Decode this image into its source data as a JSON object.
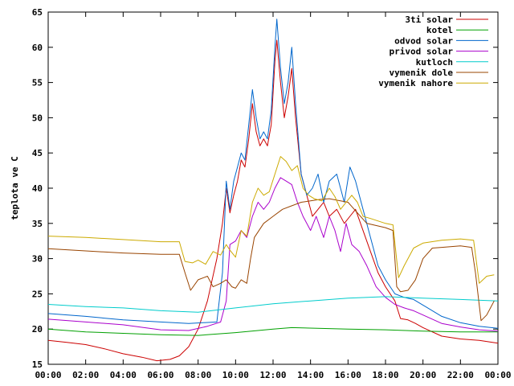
{
  "chart_data": {
    "type": "line",
    "title": "",
    "xlabel": "",
    "ylabel": "teplota ve C",
    "xlim": [
      0,
      24
    ],
    "ylim": [
      15,
      65
    ],
    "x_ticks": [
      {
        "v": 0,
        "label": "00:00"
      },
      {
        "v": 2,
        "label": "02:00"
      },
      {
        "v": 4,
        "label": "04:00"
      },
      {
        "v": 6,
        "label": "06:00"
      },
      {
        "v": 8,
        "label": "08:00"
      },
      {
        "v": 10,
        "label": "10:00"
      },
      {
        "v": 12,
        "label": "12:00"
      },
      {
        "v": 14,
        "label": "14:00"
      },
      {
        "v": 16,
        "label": "16:00"
      },
      {
        "v": 18,
        "label": "18:00"
      },
      {
        "v": 20,
        "label": "20:00"
      },
      {
        "v": 22,
        "label": "22:00"
      },
      {
        "v": 24,
        "label": "00:00"
      }
    ],
    "y_ticks": [
      15,
      20,
      25,
      30,
      35,
      40,
      45,
      50,
      55,
      60,
      65
    ],
    "grid": false,
    "legend_position": "top-right",
    "series": [
      {
        "name": "3ti solar",
        "color": "#cc0000",
        "points": [
          [
            0,
            18.4
          ],
          [
            1,
            18.1
          ],
          [
            2,
            17.8
          ],
          [
            3,
            17.2
          ],
          [
            4,
            16.5
          ],
          [
            5,
            16.0
          ],
          [
            5.8,
            15.5
          ],
          [
            6.5,
            15.7
          ],
          [
            7,
            16.2
          ],
          [
            7.5,
            17.5
          ],
          [
            8,
            20
          ],
          [
            8.5,
            24
          ],
          [
            9,
            30
          ],
          [
            9.3,
            35
          ],
          [
            9.5,
            40
          ],
          [
            9.7,
            36.5
          ],
          [
            9.9,
            39
          ],
          [
            10.1,
            41
          ],
          [
            10.3,
            44
          ],
          [
            10.5,
            43
          ],
          [
            10.7,
            47
          ],
          [
            10.9,
            52
          ],
          [
            11.1,
            48
          ],
          [
            11.3,
            46
          ],
          [
            11.5,
            47
          ],
          [
            11.7,
            46
          ],
          [
            11.9,
            49
          ],
          [
            12.1,
            58
          ],
          [
            12.2,
            61
          ],
          [
            12.4,
            55
          ],
          [
            12.6,
            50
          ],
          [
            12.8,
            53
          ],
          [
            13,
            57
          ],
          [
            13.2,
            50
          ],
          [
            13.5,
            42
          ],
          [
            13.8,
            39
          ],
          [
            14.1,
            36
          ],
          [
            14.4,
            37
          ],
          [
            14.7,
            38
          ],
          [
            15,
            36
          ],
          [
            15.4,
            37
          ],
          [
            15.8,
            35
          ],
          [
            16.1,
            36
          ],
          [
            16.4,
            37
          ],
          [
            16.8,
            34
          ],
          [
            17.2,
            31
          ],
          [
            17.6,
            28
          ],
          [
            18,
            26
          ],
          [
            18.5,
            24
          ],
          [
            18.8,
            21.5
          ],
          [
            19.2,
            21.3
          ],
          [
            19.6,
            20.8
          ],
          [
            20,
            20.2
          ],
          [
            21,
            19.0
          ],
          [
            22,
            18.6
          ],
          [
            23,
            18.4
          ],
          [
            24,
            18.0
          ]
        ]
      },
      {
        "name": "kotel",
        "color": "#00a000",
        "points": [
          [
            0,
            20.0
          ],
          [
            2,
            19.6
          ],
          [
            4,
            19.4
          ],
          [
            6,
            19.2
          ],
          [
            8,
            19.1
          ],
          [
            10,
            19.5
          ],
          [
            12,
            20.0
          ],
          [
            13,
            20.2
          ],
          [
            16,
            20.0
          ],
          [
            18,
            19.9
          ],
          [
            20,
            19.7
          ],
          [
            22,
            19.6
          ],
          [
            24,
            19.6
          ]
        ]
      },
      {
        "name": "odvod solar",
        "color": "#0066cc",
        "points": [
          [
            0,
            22.2
          ],
          [
            2,
            21.8
          ],
          [
            4,
            21.3
          ],
          [
            6,
            21.0
          ],
          [
            7.5,
            20.8
          ],
          [
            9,
            21.0
          ],
          [
            9.3,
            28
          ],
          [
            9.5,
            41
          ],
          [
            9.7,
            37
          ],
          [
            9.9,
            41
          ],
          [
            10.1,
            43
          ],
          [
            10.3,
            45
          ],
          [
            10.5,
            44
          ],
          [
            10.7,
            49
          ],
          [
            10.9,
            54
          ],
          [
            11.1,
            50
          ],
          [
            11.3,
            47
          ],
          [
            11.5,
            48
          ],
          [
            11.7,
            47
          ],
          [
            11.9,
            51
          ],
          [
            12.1,
            60
          ],
          [
            12.2,
            64
          ],
          [
            12.4,
            57
          ],
          [
            12.6,
            52
          ],
          [
            12.8,
            55
          ],
          [
            13,
            60
          ],
          [
            13.2,
            52
          ],
          [
            13.5,
            42
          ],
          [
            13.8,
            39
          ],
          [
            14.1,
            40
          ],
          [
            14.4,
            42
          ],
          [
            14.7,
            38
          ],
          [
            15,
            41
          ],
          [
            15.4,
            42
          ],
          [
            15.8,
            38
          ],
          [
            16.1,
            43
          ],
          [
            16.4,
            41
          ],
          [
            16.8,
            37
          ],
          [
            17.2,
            33
          ],
          [
            17.6,
            29
          ],
          [
            18,
            27
          ],
          [
            18.5,
            25
          ],
          [
            19,
            24.5
          ],
          [
            19.5,
            24.2
          ],
          [
            20,
            23.4
          ],
          [
            21,
            21.8
          ],
          [
            22,
            20.9
          ],
          [
            23,
            20.4
          ],
          [
            24,
            20.1
          ]
        ]
      },
      {
        "name": "privod solar",
        "color": "#aa00cc",
        "points": [
          [
            0,
            21.4
          ],
          [
            2,
            21.0
          ],
          [
            4,
            20.6
          ],
          [
            6,
            19.9
          ],
          [
            7.5,
            19.8
          ],
          [
            8.5,
            20.4
          ],
          [
            9.2,
            21
          ],
          [
            9.5,
            24
          ],
          [
            9.7,
            32
          ],
          [
            10,
            32.5
          ],
          [
            10.3,
            34
          ],
          [
            10.6,
            33
          ],
          [
            10.9,
            36
          ],
          [
            11.2,
            38
          ],
          [
            11.5,
            37
          ],
          [
            11.8,
            38
          ],
          [
            12.1,
            40
          ],
          [
            12.4,
            41.5
          ],
          [
            12.7,
            41
          ],
          [
            13,
            40.5
          ],
          [
            13.3,
            38
          ],
          [
            13.6,
            36
          ],
          [
            14,
            34
          ],
          [
            14.3,
            36
          ],
          [
            14.7,
            33
          ],
          [
            15,
            36
          ],
          [
            15.3,
            34
          ],
          [
            15.6,
            31
          ],
          [
            15.9,
            35
          ],
          [
            16.2,
            32
          ],
          [
            16.6,
            31
          ],
          [
            17,
            29
          ],
          [
            17.5,
            26
          ],
          [
            18,
            24.5
          ],
          [
            18.5,
            23.5
          ],
          [
            19,
            23.0
          ],
          [
            19.5,
            22.6
          ],
          [
            20,
            22.0
          ],
          [
            21,
            20.8
          ],
          [
            22,
            20.3
          ],
          [
            23,
            19.9
          ],
          [
            24,
            19.7
          ]
        ]
      },
      {
        "name": "kutloch",
        "color": "#00cccc",
        "points": [
          [
            0,
            23.5
          ],
          [
            2,
            23.2
          ],
          [
            4,
            23.0
          ],
          [
            6,
            22.6
          ],
          [
            8,
            22.4
          ],
          [
            10,
            23.0
          ],
          [
            12,
            23.6
          ],
          [
            14,
            24.0
          ],
          [
            16,
            24.4
          ],
          [
            18,
            24.6
          ],
          [
            20,
            24.4
          ],
          [
            22,
            24.2
          ],
          [
            24,
            24.0
          ]
        ]
      },
      {
        "name": "vymenik dole",
        "color": "#994400",
        "points": [
          [
            0,
            31.4
          ],
          [
            2,
            31.1
          ],
          [
            4,
            30.8
          ],
          [
            6,
            30.6
          ],
          [
            7,
            30.6
          ],
          [
            7.3,
            28
          ],
          [
            7.6,
            25.5
          ],
          [
            8,
            27
          ],
          [
            8.5,
            27.5
          ],
          [
            8.8,
            26
          ],
          [
            9.2,
            26.5
          ],
          [
            9.5,
            27
          ],
          [
            9.8,
            26
          ],
          [
            10,
            25.8
          ],
          [
            10.3,
            27
          ],
          [
            10.6,
            26.5
          ],
          [
            10.8,
            30
          ],
          [
            11,
            33
          ],
          [
            11.5,
            35
          ],
          [
            12,
            36
          ],
          [
            12.5,
            37
          ],
          [
            13,
            37.5
          ],
          [
            13.5,
            38
          ],
          [
            14,
            38.2
          ],
          [
            14.5,
            38.4
          ],
          [
            15,
            38.5
          ],
          [
            16,
            38.0
          ],
          [
            17,
            35.0
          ],
          [
            18,
            34.4
          ],
          [
            18.4,
            34
          ],
          [
            18.6,
            26
          ],
          [
            18.8,
            25.3
          ],
          [
            19.2,
            25.5
          ],
          [
            19.6,
            27
          ],
          [
            20,
            30
          ],
          [
            20.5,
            31.5
          ],
          [
            21,
            31.6
          ],
          [
            22,
            31.8
          ],
          [
            22.6,
            31.6
          ],
          [
            22.8,
            28
          ],
          [
            23.1,
            21.2
          ],
          [
            23.4,
            22
          ],
          [
            23.8,
            24
          ]
        ]
      },
      {
        "name": "vymenik nahore",
        "color": "#ccaa00",
        "points": [
          [
            0,
            33.2
          ],
          [
            2,
            33.0
          ],
          [
            4,
            32.7
          ],
          [
            6,
            32.4
          ],
          [
            7,
            32.4
          ],
          [
            7.3,
            29.6
          ],
          [
            7.7,
            29.4
          ],
          [
            8,
            29.8
          ],
          [
            8.4,
            29.2
          ],
          [
            8.8,
            31
          ],
          [
            9.2,
            30.5
          ],
          [
            9.5,
            32
          ],
          [
            9.7,
            31.2
          ],
          [
            10,
            30.2
          ],
          [
            10.3,
            34
          ],
          [
            10.6,
            33.2
          ],
          [
            10.9,
            38
          ],
          [
            11.2,
            40
          ],
          [
            11.5,
            39
          ],
          [
            11.8,
            39.5
          ],
          [
            12.1,
            42
          ],
          [
            12.4,
            44.5
          ],
          [
            12.7,
            43.8
          ],
          [
            13,
            42.5
          ],
          [
            13.3,
            43.2
          ],
          [
            13.6,
            40
          ],
          [
            13.9,
            39
          ],
          [
            14.2,
            38.5
          ],
          [
            14.6,
            38.2
          ],
          [
            15,
            40
          ],
          [
            15.3,
            38.8
          ],
          [
            15.6,
            37
          ],
          [
            15.9,
            38
          ],
          [
            16.2,
            39
          ],
          [
            16.5,
            38
          ],
          [
            16.8,
            36
          ],
          [
            17.2,
            35.7
          ],
          [
            18,
            35.0
          ],
          [
            18.4,
            34.8
          ],
          [
            18.7,
            27.3
          ],
          [
            19.0,
            29
          ],
          [
            19.5,
            31.5
          ],
          [
            20,
            32.2
          ],
          [
            21,
            32.6
          ],
          [
            22,
            32.8
          ],
          [
            22.7,
            32.6
          ],
          [
            23.0,
            26.5
          ],
          [
            23.4,
            27.5
          ],
          [
            23.8,
            27.7
          ]
        ]
      }
    ]
  }
}
